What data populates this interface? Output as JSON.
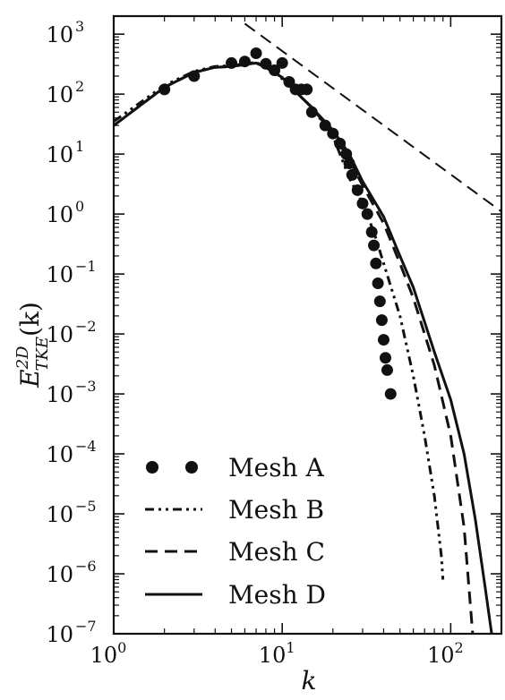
{
  "chart_data": {
    "type": "line",
    "title": "",
    "xlabel": "k",
    "ylabel": {
      "base": "E",
      "sup": "2D",
      "sub": "TKE",
      "arg": "(k)"
    },
    "xscale": "log",
    "yscale": "log",
    "xlim": [
      1,
      200
    ],
    "ylim": [
      1e-07,
      2000
    ],
    "x_ticks": [
      {
        "value": 1,
        "base": "10",
        "exp": "0"
      },
      {
        "value": 10,
        "base": "10",
        "exp": "1"
      },
      {
        "value": 100,
        "base": "10",
        "exp": "2"
      }
    ],
    "y_ticks": [
      {
        "value": 1e-07,
        "base": "10",
        "exp": "−7"
      },
      {
        "value": 1e-06,
        "base": "10",
        "exp": "−6"
      },
      {
        "value": 1e-05,
        "base": "10",
        "exp": "−5"
      },
      {
        "value": 0.0001,
        "base": "10",
        "exp": "−4"
      },
      {
        "value": 0.001,
        "base": "10",
        "exp": "−3"
      },
      {
        "value": 0.01,
        "base": "10",
        "exp": "−2"
      },
      {
        "value": 0.1,
        "base": "10",
        "exp": "−1"
      },
      {
        "value": 1,
        "base": "10",
        "exp": "0"
      },
      {
        "value": 10,
        "base": "10",
        "exp": "1"
      },
      {
        "value": 100,
        "base": "10",
        "exp": "2"
      },
      {
        "value": 1000,
        "base": "10",
        "exp": "3"
      }
    ],
    "grid": false,
    "legend_position": "bottom-left",
    "series": [
      {
        "name": "Mesh A",
        "style": "markers",
        "color": "#111111",
        "points": [
          [
            2,
            120
          ],
          [
            3,
            200
          ],
          [
            5,
            330
          ],
          [
            6,
            350
          ],
          [
            7,
            480
          ],
          [
            8,
            320
          ],
          [
            9,
            250
          ],
          [
            10,
            330
          ],
          [
            11,
            160
          ],
          [
            12,
            120
          ],
          [
            13,
            120
          ],
          [
            14,
            120
          ],
          [
            15,
            50
          ],
          [
            18,
            30
          ],
          [
            20,
            22
          ],
          [
            22,
            15
          ],
          [
            24,
            10
          ],
          [
            25,
            7
          ],
          [
            26,
            4.5
          ],
          [
            28,
            2.5
          ],
          [
            30,
            1.5
          ],
          [
            32,
            1.0
          ],
          [
            34,
            0.5
          ],
          [
            35,
            0.3
          ],
          [
            36,
            0.15
          ],
          [
            37,
            0.07
          ],
          [
            38,
            0.035
          ],
          [
            39,
            0.017
          ],
          [
            40,
            0.008
          ],
          [
            41,
            0.004
          ],
          [
            42,
            0.0025
          ],
          [
            44,
            0.001
          ]
        ]
      },
      {
        "name": "Mesh B",
        "style": "dashdotdot",
        "color": "#111111",
        "points": [
          [
            1,
            35
          ],
          [
            2,
            140
          ],
          [
            3,
            240
          ],
          [
            4,
            290
          ],
          [
            5,
            300
          ],
          [
            6,
            320
          ],
          [
            7,
            340
          ],
          [
            8,
            280
          ],
          [
            10,
            180
          ],
          [
            12,
            110
          ],
          [
            15,
            60
          ],
          [
            20,
            20
          ],
          [
            25,
            4
          ],
          [
            30,
            1.5
          ],
          [
            35,
            0.5
          ],
          [
            40,
            0.15
          ],
          [
            50,
            0.02
          ],
          [
            60,
            0.002
          ],
          [
            70,
            0.0002
          ],
          [
            80,
            2e-05
          ],
          [
            88,
            2e-06
          ],
          [
            90,
            8e-07
          ]
        ]
      },
      {
        "name": "Mesh C",
        "style": "dashed",
        "color": "#111111",
        "points": [
          [
            1,
            30
          ],
          [
            2,
            130
          ],
          [
            3,
            230
          ],
          [
            4,
            280
          ],
          [
            5,
            290
          ],
          [
            6,
            310
          ],
          [
            7,
            330
          ],
          [
            8,
            280
          ],
          [
            10,
            190
          ],
          [
            12,
            110
          ],
          [
            15,
            60
          ],
          [
            20,
            22
          ],
          [
            25,
            8
          ],
          [
            30,
            3
          ],
          [
            40,
            0.7
          ],
          [
            50,
            0.15
          ],
          [
            60,
            0.04
          ],
          [
            80,
            0.003
          ],
          [
            100,
            0.0002
          ],
          [
            120,
            6e-06
          ],
          [
            135,
            1e-07
          ]
        ]
      },
      {
        "name": "Mesh D",
        "style": "solid",
        "color": "#111111",
        "points": [
          [
            1,
            30
          ],
          [
            2,
            130
          ],
          [
            3,
            230
          ],
          [
            4,
            280
          ],
          [
            5,
            290
          ],
          [
            6,
            310
          ],
          [
            7,
            330
          ],
          [
            8,
            280
          ],
          [
            10,
            190
          ],
          [
            12,
            110
          ],
          [
            15,
            60
          ],
          [
            20,
            25
          ],
          [
            25,
            10
          ],
          [
            30,
            3.5
          ],
          [
            40,
            0.9
          ],
          [
            50,
            0.2
          ],
          [
            60,
            0.06
          ],
          [
            80,
            0.005
          ],
          [
            100,
            0.0008
          ],
          [
            120,
            0.0001
          ],
          [
            140,
            8e-06
          ],
          [
            160,
            6e-07
          ],
          [
            175,
            1e-07
          ]
        ]
      },
      {
        "name": "",
        "style": "reference-dashed",
        "color": "#111111",
        "points": [
          [
            6,
            1500
          ],
          [
            200,
            1.1
          ]
        ]
      }
    ]
  }
}
